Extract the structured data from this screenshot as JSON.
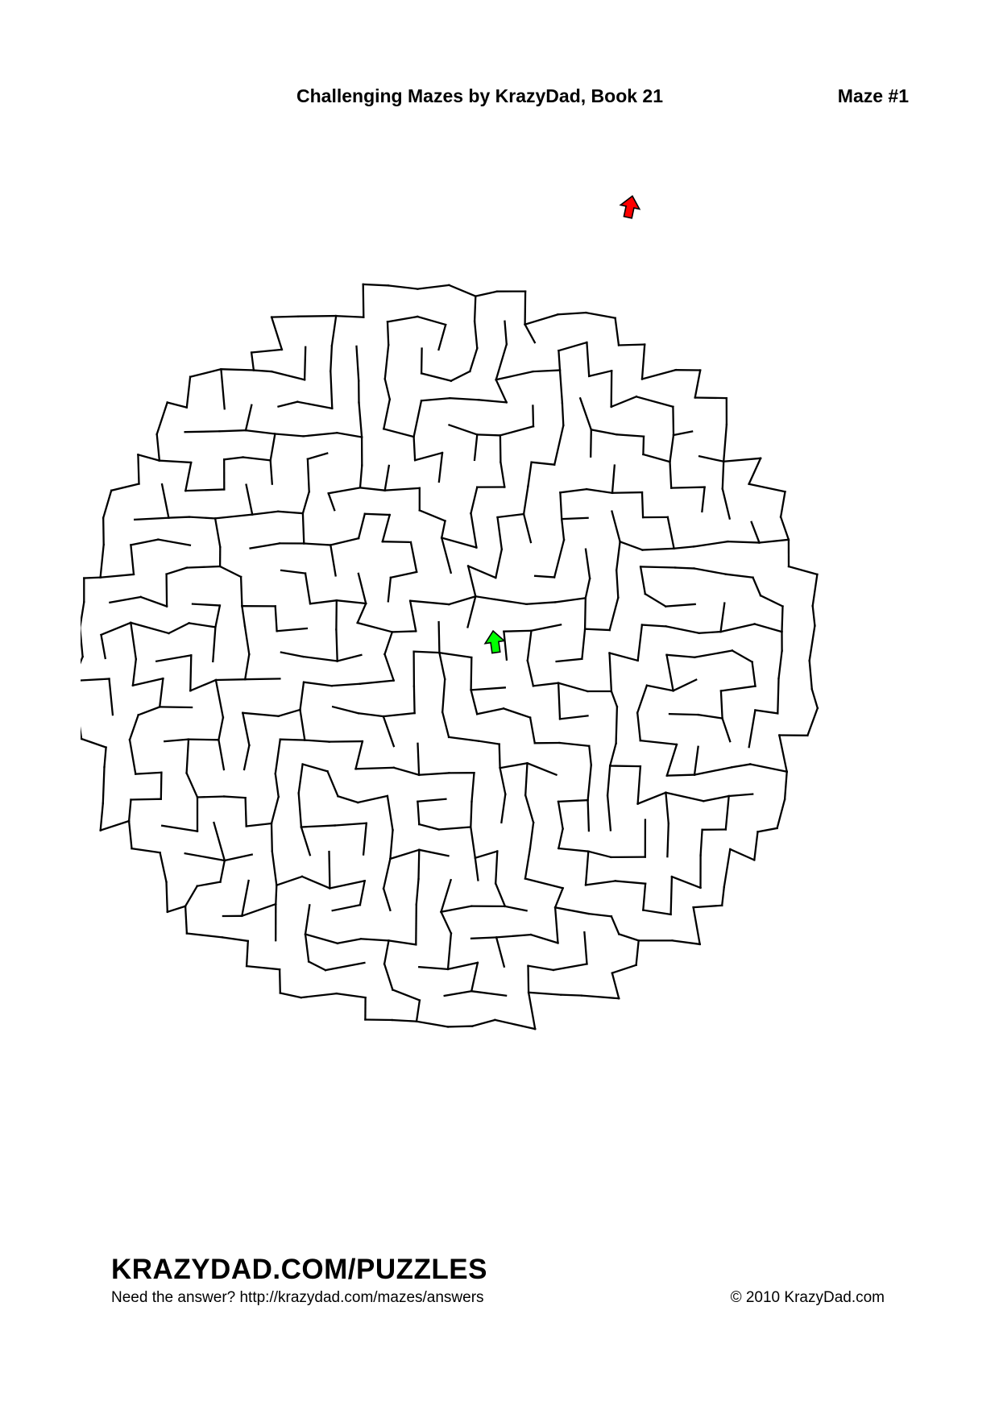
{
  "header": {
    "title": "Challenging Mazes by KrazyDad, Book 21",
    "maze_number": "Maze #1"
  },
  "maze": {
    "shape": "circle",
    "wall_color": "#000000",
    "exit_arrow": {
      "icon": "up-arrow-icon",
      "color": "#ff0000",
      "role": "exit"
    },
    "start_arrow": {
      "icon": "up-arrow-icon",
      "color": "#00ff00",
      "role": "start"
    }
  },
  "footer": {
    "brand": "KRAZYDAD.COM/PUZZLES",
    "answer_text": "Need the answer? http://krazydad.com/mazes/answers",
    "copyright": "© 2010 KrazyDad.com"
  }
}
